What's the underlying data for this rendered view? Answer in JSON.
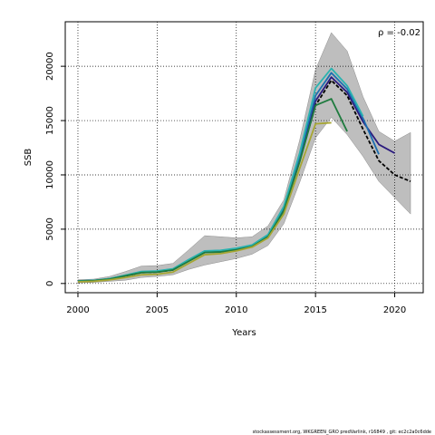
{
  "chart_data": {
    "type": "line",
    "title": "",
    "xlabel": "Years",
    "ylabel": "SSB",
    "xlim": [
      1999.2,
      2021.8
    ],
    "ylim": [
      -850,
      24100
    ],
    "xticks": [
      2000,
      2005,
      2010,
      2015,
      2020
    ],
    "yticks": [
      0,
      5000,
      10000,
      15000,
      20000
    ],
    "grid": true,
    "annotation": "ρ = -0.02",
    "colors": {
      "band": "#bebebe",
      "band_edge": "#8c8c8c",
      "grid": "#000000"
    },
    "band": {
      "x": [
        2000,
        2001,
        2002,
        2003,
        2004,
        2005,
        2006,
        2007,
        2008,
        2009,
        2010,
        2011,
        2012,
        2013,
        2014,
        2015,
        2016,
        2017,
        2018,
        2019,
        2020,
        2021
      ],
      "upper": [
        350,
        400,
        650,
        1100,
        1600,
        1650,
        1850,
        3100,
        4400,
        4300,
        4200,
        4300,
        5300,
        7700,
        13200,
        19700,
        23100,
        21400,
        17200,
        14000,
        13100,
        13900
      ],
      "lower": [
        50,
        100,
        200,
        300,
        550,
        650,
        800,
        1300,
        1700,
        2000,
        2300,
        2700,
        3500,
        5500,
        9300,
        13400,
        15300,
        13700,
        11700,
        9400,
        7900,
        6400
      ]
    },
    "series": [
      {
        "color": "#000000",
        "dashed": true,
        "x": [
          2000,
          2001,
          2002,
          2003,
          2004,
          2005,
          2006,
          2007,
          2008,
          2009,
          2010,
          2011,
          2012,
          2013,
          2014,
          2015,
          2016,
          2017,
          2018,
          2019,
          2020,
          2021
        ],
        "y": [
          200,
          250,
          400,
          700,
          1000,
          1050,
          1250,
          2100,
          2900,
          2950,
          3150,
          3450,
          4350,
          6800,
          11300,
          16400,
          18700,
          17300,
          14200,
          11300,
          10000,
          9400
        ]
      },
      {
        "color": "#2a1a7e",
        "x": [
          2000,
          2001,
          2002,
          2003,
          2004,
          2005,
          2006,
          2007,
          2008,
          2009,
          2010,
          2011,
          2012,
          2013,
          2014,
          2015,
          2016,
          2017,
          2018,
          2019,
          2020
        ],
        "y": [
          210,
          260,
          420,
          730,
          1050,
          1100,
          1300,
          2150,
          2950,
          3000,
          3200,
          3500,
          4400,
          6900,
          11500,
          16800,
          19000,
          17600,
          14900,
          12800,
          12000
        ]
      },
      {
        "color": "#1d6fb0",
        "x": [
          2000,
          2001,
          2002,
          2003,
          2004,
          2005,
          2006,
          2007,
          2008,
          2009,
          2010,
          2011,
          2012,
          2013,
          2014,
          2015,
          2016,
          2017,
          2018,
          2019
        ],
        "y": [
          220,
          270,
          430,
          750,
          1080,
          1130,
          1330,
          2180,
          2980,
          3020,
          3220,
          3520,
          4450,
          7000,
          11700,
          17300,
          19400,
          17900,
          15200,
          11900
        ]
      },
      {
        "color": "#2ab3b0",
        "x": [
          2000,
          2001,
          2002,
          2003,
          2004,
          2005,
          2006,
          2007,
          2008,
          2009,
          2010,
          2011,
          2012,
          2013,
          2014,
          2015,
          2016,
          2017,
          2018
        ],
        "y": [
          230,
          280,
          440,
          770,
          1100,
          1150,
          1350,
          2200,
          3000,
          3050,
          3250,
          3550,
          4500,
          7100,
          12000,
          18000,
          19800,
          18200,
          15400
        ]
      },
      {
        "color": "#1e7b3e",
        "x": [
          2000,
          2001,
          2002,
          2003,
          2004,
          2005,
          2006,
          2007,
          2008,
          2009,
          2010,
          2011,
          2012,
          2013,
          2014,
          2015,
          2016,
          2017
        ],
        "y": [
          200,
          250,
          400,
          700,
          1000,
          1050,
          1250,
          2050,
          2850,
          2900,
          3100,
          3400,
          4300,
          6700,
          11200,
          16400,
          17000,
          14000
        ]
      },
      {
        "color": "#a7a633",
        "x": [
          2000,
          2001,
          2002,
          2003,
          2004,
          2005,
          2006,
          2007,
          2008,
          2009,
          2010,
          2011,
          2012,
          2013,
          2014,
          2015,
          2016
        ],
        "y": [
          150,
          200,
          330,
          550,
          800,
          850,
          1050,
          1850,
          2650,
          2750,
          3000,
          3350,
          4200,
          6400,
          10600,
          14700,
          14800
        ]
      }
    ]
  },
  "footer_text": "stockassessment.org,  WKGREEN_GRO  predVarlink,  r16849 ,  git:  ec2c2a0c6dde"
}
